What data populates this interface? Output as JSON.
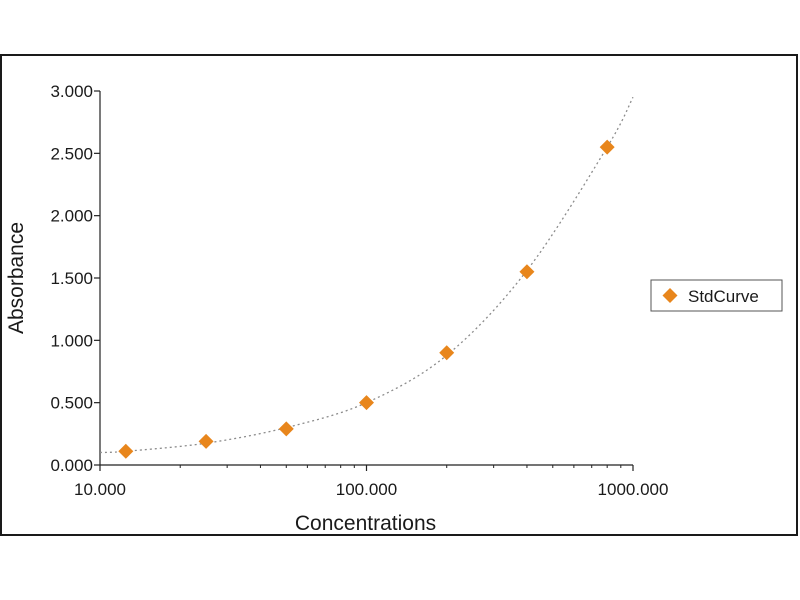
{
  "chart_data": {
    "type": "scatter",
    "x_scale": "log",
    "xlabel": "Concentrations",
    "ylabel": "Absorbance",
    "xlim": [
      10,
      1000
    ],
    "ylim": [
      0,
      3
    ],
    "x_ticks": [
      {
        "value": 10,
        "label": "10.000"
      },
      {
        "value": 100,
        "label": "100.000"
      },
      {
        "value": 1000,
        "label": "1000.000"
      }
    ],
    "y_ticks": [
      {
        "value": 0,
        "label": "0.000"
      },
      {
        "value": 0.5,
        "label": "0.500"
      },
      {
        "value": 1,
        "label": "1.000"
      },
      {
        "value": 1.5,
        "label": "1.500"
      },
      {
        "value": 2,
        "label": "2.000"
      },
      {
        "value": 2.5,
        "label": "2.500"
      },
      {
        "value": 3,
        "label": "3.000"
      }
    ],
    "series": [
      {
        "name": "StdCurve",
        "marker": "diamond",
        "color": "#e8861c",
        "x": [
          12.5,
          25,
          50,
          100,
          200,
          400,
          800
        ],
        "y": [
          0.11,
          0.19,
          0.29,
          0.5,
          0.9,
          1.55,
          2.55
        ]
      }
    ],
    "trendline": {
      "style": "dashed",
      "color": "#8c8c8c",
      "x": [
        10,
        12.5,
        25,
        50,
        100,
        200,
        400,
        800,
        1000
      ],
      "y": [
        0.1,
        0.11,
        0.175,
        0.3,
        0.5,
        0.88,
        1.56,
        2.55,
        2.95
      ]
    },
    "grid": false,
    "legend": {
      "position": "right",
      "entries": [
        "StdCurve"
      ]
    }
  }
}
